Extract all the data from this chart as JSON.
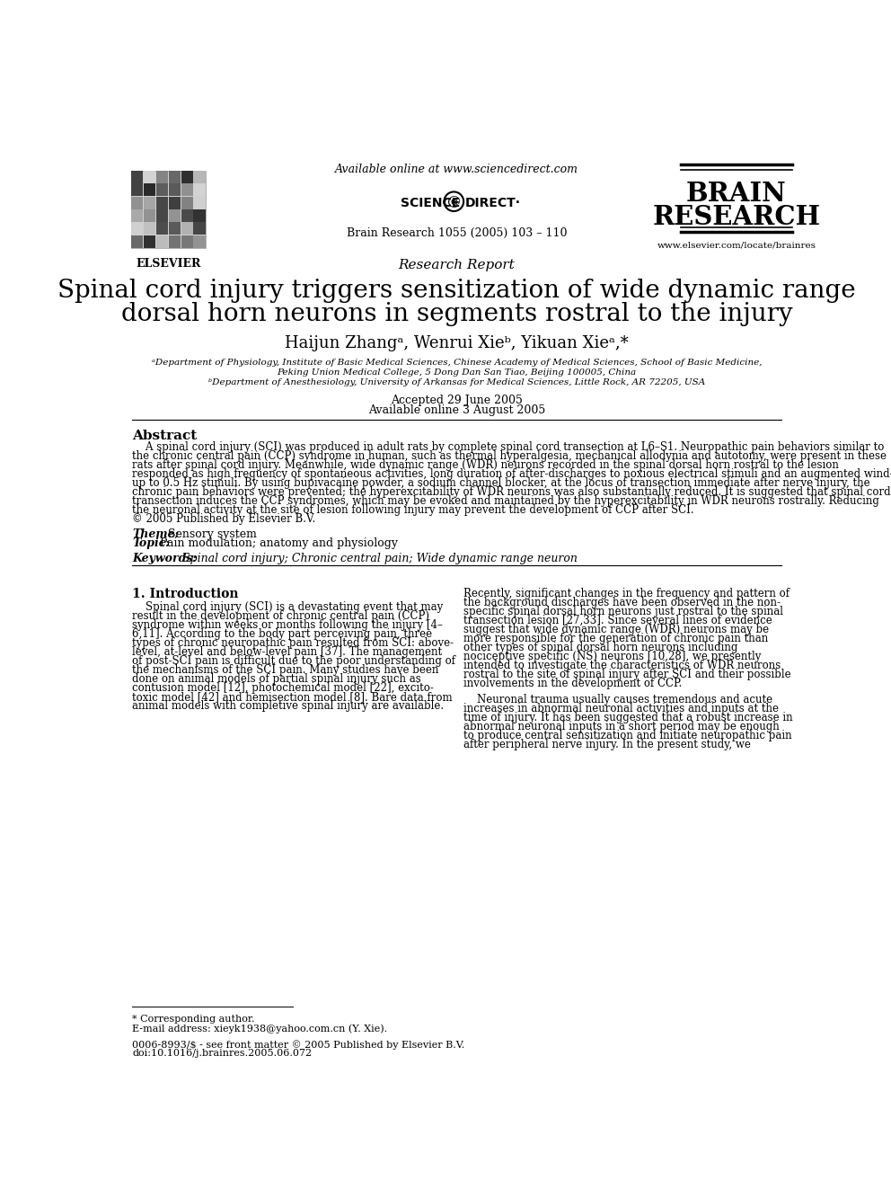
{
  "bg_color": "#ffffff",
  "header_available_online": "Available online at www.sciencedirect.com",
  "journal_info": "Brain Research 1055 (2005) 103 – 110",
  "journal_name_line1": "BRAIN",
  "journal_name_line2": "RESEARCH",
  "journal_url": "www.elsevier.com/locate/brainres",
  "elsevier_label": "ELSEVIER",
  "article_type": "Research Report",
  "title_line1": "Spinal cord injury triggers sensitization of wide dynamic range",
  "title_line2": "dorsal horn neurons in segments rostral to the injury",
  "authors": "Haijun Zhangᵃ, Wenrui Xieᵇ, Yikuan Xieᵃ,*",
  "affil_a": "ᵃDepartment of Physiology, Institute of Basic Medical Sciences, Chinese Academy of Medical Sciences, School of Basic Medicine,",
  "affil_a2": "Peking Union Medical College, 5 Dong Dan San Tiao, Beijing 100005, China",
  "affil_b": "ᵇDepartment of Anesthesiology, University of Arkansas for Medical Sciences, Little Rock, AR 72205, USA",
  "received": "Accepted 29 June 2005",
  "available": "Available online 3 August 2005",
  "abstract_title": "Abstract",
  "abstract_text": "    A spinal cord injury (SCI) was produced in adult rats by complete spinal cord transection at L6–S1. Neuropathic pain behaviors similar to\nthe chronic central pain (CCP) syndrome in human, such as thermal hyperalgesia, mechanical allodynia and autotomy, were present in these\nrats after spinal cord injury. Meanwhile, wide dynamic range (WDR) neurons recorded in the spinal dorsal horn rostral to the lesion\nresponded as high frequency of spontaneous activities, long duration of after-discharges to noxious electrical stimuli and an augmented wind-\nup to 0.5 Hz stimuli. By using bupivacaine powder, a sodium channel blocker, at the locus of transection immediate after nerve injury, the\nchronic pain behaviors were prevented; the hyperexcitability of WDR neurons was also substantially reduced. It is suggested that spinal cord\ntransection induces the CCP syndromes, which may be evoked and maintained by the hyperexcitability in WDR neurons rostrally. Reducing\nthe neuronal activity at the site of lesion following injury may prevent the development of CCP after SCI.\n© 2005 Published by Elsevier B.V.",
  "theme_label": "Theme:",
  "theme_value": " Sensory system",
  "topic_label": "Topic:",
  "topic_value": " Pain modulation; anatomy and physiology",
  "keywords_label": "Keywords:",
  "keywords_value": " Spinal cord injury; Chronic central pain; Wide dynamic range neuron",
  "section1_title": "1. Introduction",
  "intro_col1_para1": "    Spinal cord injury (SCI) is a devastating event that may\nresult in the development of chronic central pain (CCP)\nsyndrome within weeks or months following the injury [4–\n6,11]. According to the body part perceiving pain, three\ntypes of chronic neuropathic pain resulted from SCI: above-\nlevel, at-level and below-level pain [37]. The management\nof post-SCI pain is difficult due to the poor understanding of\nthe mechanisms of the SCI pain. Many studies have been\ndone on animal models of partial spinal injury such as\ncontusion model [12], photochemical model [22], excito-\ntoxic model [42] and hemisection model [8]. Bare data from\nanimal models with completive spinal injury are available.",
  "intro_col2_para1": "Recently, significant changes in the frequency and pattern of\nthe background discharges have been observed in the non-\nspecific spinal dorsal horn neurons just rostral to the spinal\ntransection lesion [27,33]. Since several lines of evidence\nsuggest that wide dynamic range (WDR) neurons may be\nmore responsible for the generation of chronic pain than\nother types of spinal dorsal horn neurons including\nnociceptive specific (NS) neurons [10,28], we presently\nintended to investigate the characteristics of WDR neurons\nrostral to the site of spinal injury after SCI and their possible\ninvolvements in the development of CCP.",
  "intro_col2_para2": "    Neuronal trauma usually causes tremendous and acute\nincreases in abnormal neuronal activities and inputs at the\ntime of injury. It has been suggested that a robust increase in\nabnormal neuronal inputs in a short period may be enough\nto produce central sensitization and initiate neuropathic pain\nafter peripheral nerve injury. In the present study, we",
  "footnote_corresponding": "* Corresponding author.",
  "footnote_email": "E-mail address: xieyk1938@yahoo.com.cn (Y. Xie).",
  "footer_issn": "0006-8993/$ - see front matter © 2005 Published by Elsevier B.V.",
  "footer_doi": "doi:10.1016/j.brainres.2005.06.072"
}
